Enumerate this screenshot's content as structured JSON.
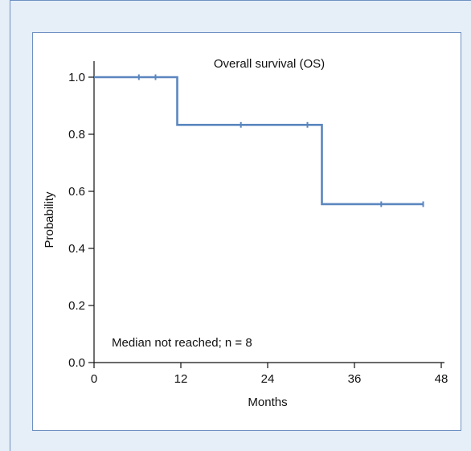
{
  "chart_data": {
    "type": "line",
    "subtype": "kaplan-meier-step",
    "title": "Overall survival (OS)",
    "annotation": "Median not reached; n = 8",
    "xlabel": "Months",
    "ylabel": "Probability",
    "xlim": [
      0,
      48
    ],
    "ylim": [
      0,
      1.0
    ],
    "xticks": [
      0,
      12,
      24,
      36,
      48
    ],
    "xtick_labels": [
      "0",
      "12",
      "24",
      "36",
      "48"
    ],
    "yticks": [
      0,
      0.2,
      0.4,
      0.6,
      0.8,
      1.0
    ],
    "ytick_labels": [
      "0.0",
      "0.2",
      "0.4",
      "0.6",
      "0.8",
      "1.0"
    ],
    "grid": false,
    "line_color": "#5b86bf",
    "background_color": "#e6eef8",
    "frame_color": "#6f91c2",
    "series": [
      {
        "steps": [
          {
            "x": 0,
            "y": 1.0
          },
          {
            "x": 11.5,
            "y": 0.833
          },
          {
            "x": 31.5,
            "y": 0.555
          }
        ],
        "x_end": 45.5,
        "censored": [
          {
            "x": 6.2,
            "y": 1.0
          },
          {
            "x": 8.5,
            "y": 1.0
          },
          {
            "x": 20.3,
            "y": 0.833
          },
          {
            "x": 29.5,
            "y": 0.833
          },
          {
            "x": 39.7,
            "y": 0.555
          },
          {
            "x": 45.5,
            "y": 0.555
          }
        ]
      }
    ]
  }
}
